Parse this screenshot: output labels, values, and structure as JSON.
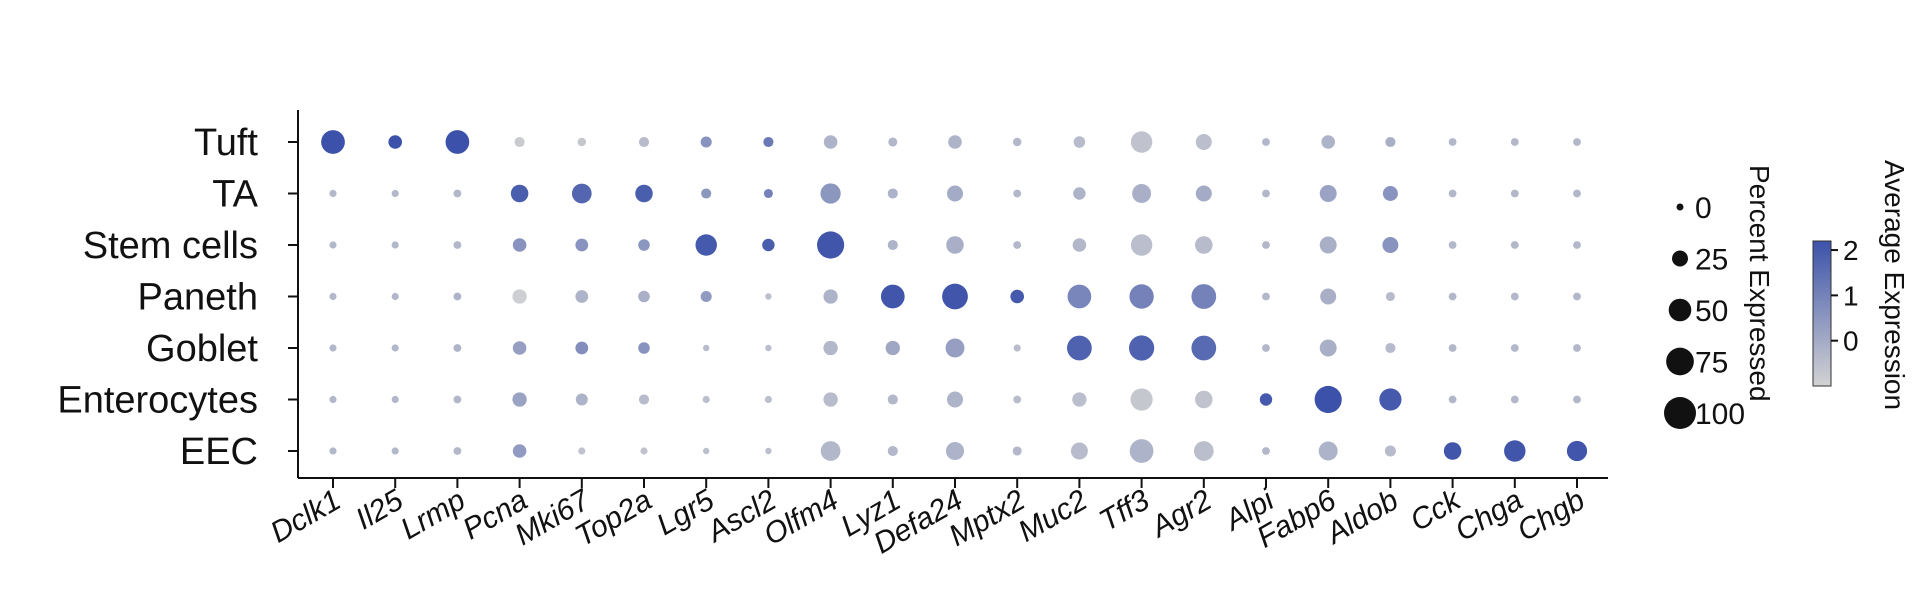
{
  "chart_data": {
    "type": "dotplot",
    "genes": [
      "Dclk1",
      "Il25",
      "Lrmp",
      "Pcna",
      "Mki67",
      "Top2a",
      "Lgr5",
      "Ascl2",
      "Olfm4",
      "Lyz1",
      "Defa24",
      "Mptx2",
      "Muc2",
      "Tff3",
      "Agr2",
      "Alpi",
      "Fabp6",
      "Aldob",
      "Cck",
      "Chga",
      "Chgb"
    ],
    "cell_types": [
      "Tuft",
      "TA",
      "Stem cells",
      "Paneth",
      "Goblet",
      "Enterocytes",
      "EEC"
    ],
    "percent_expressed": [
      [
        55,
        18,
        55,
        10,
        7,
        10,
        12,
        10,
        18,
        8,
        18,
        7,
        13,
        45,
        25,
        6,
        18,
        10,
        6,
        6,
        6
      ],
      [
        5,
        5,
        6,
        30,
        38,
        30,
        10,
        8,
        40,
        10,
        25,
        6,
        15,
        35,
        25,
        6,
        28,
        22,
        6,
        6,
        6
      ],
      [
        5,
        5,
        6,
        18,
        16,
        13,
        45,
        15,
        72,
        10,
        30,
        6,
        18,
        45,
        30,
        6,
        28,
        25,
        6,
        6,
        6
      ],
      [
        5,
        5,
        6,
        20,
        16,
        13,
        12,
        4,
        20,
        55,
        65,
        18,
        55,
        58,
        60,
        6,
        25,
        8,
        6,
        6,
        6
      ],
      [
        5,
        5,
        6,
        18,
        16,
        13,
        4,
        4,
        20,
        20,
        35,
        5,
        60,
        62,
        60,
        6,
        28,
        10,
        6,
        6,
        6
      ],
      [
        5,
        5,
        6,
        20,
        14,
        10,
        5,
        5,
        20,
        10,
        25,
        6,
        20,
        48,
        30,
        15,
        72,
        48,
        6,
        6,
        6
      ],
      [
        5,
        5,
        6,
        18,
        5,
        5,
        4,
        4,
        38,
        10,
        32,
        8,
        28,
        55,
        38,
        6,
        35,
        12,
        30,
        45,
        40
      ]
    ],
    "average_expression": [
      [
        2.2,
        2.2,
        2.2,
        -0.8,
        -0.7,
        -0.4,
        0.6,
        1.2,
        -0.2,
        -0.3,
        -0.2,
        -0.3,
        -0.4,
        -0.6,
        -0.5,
        -0.3,
        -0.2,
        -0.1,
        -0.3,
        -0.3,
        -0.3
      ],
      [
        -0.3,
        -0.3,
        -0.3,
        1.9,
        1.7,
        1.9,
        0.5,
        1.0,
        0.5,
        -0.2,
        0.0,
        -0.3,
        -0.2,
        -0.1,
        0.0,
        -0.3,
        0.2,
        0.6,
        -0.3,
        -0.3,
        -0.3
      ],
      [
        -0.3,
        -0.3,
        -0.3,
        0.6,
        0.6,
        0.5,
        2.0,
        1.9,
        2.1,
        -0.2,
        -0.1,
        -0.3,
        -0.3,
        -0.5,
        -0.4,
        -0.3,
        -0.1,
        0.6,
        -0.3,
        -0.3,
        -0.3
      ],
      [
        -0.3,
        -0.3,
        -0.2,
        -0.9,
        -0.2,
        -0.1,
        0.4,
        -0.5,
        -0.2,
        2.1,
        2.1,
        2.0,
        0.9,
        1.0,
        1.0,
        -0.3,
        -0.1,
        -0.4,
        -0.3,
        -0.3,
        -0.3
      ],
      [
        -0.3,
        -0.3,
        -0.2,
        0.3,
        0.7,
        0.6,
        -0.4,
        -0.5,
        -0.3,
        0.1,
        0.3,
        -0.4,
        1.8,
        1.8,
        1.6,
        -0.3,
        -0.1,
        -0.4,
        -0.3,
        -0.3,
        -0.3
      ],
      [
        -0.3,
        -0.3,
        -0.3,
        0.2,
        -0.2,
        -0.4,
        -0.5,
        -0.5,
        -0.4,
        -0.3,
        -0.2,
        -0.4,
        -0.5,
        -0.7,
        -0.6,
        2.0,
        2.2,
        2.0,
        -0.3,
        -0.3,
        -0.3
      ],
      [
        -0.3,
        -0.3,
        -0.3,
        0.4,
        -0.6,
        -0.6,
        -0.5,
        -0.5,
        -0.3,
        -0.3,
        -0.2,
        -0.3,
        -0.4,
        -0.2,
        -0.5,
        -0.3,
        -0.2,
        -0.4,
        2.1,
        2.1,
        2.1
      ]
    ],
    "size_legend": {
      "title": "Percent Expressed",
      "values": [
        0,
        25,
        50,
        75,
        100
      ],
      "labels": [
        "0",
        "25",
        "50",
        "75",
        "100"
      ]
    },
    "color_legend": {
      "title": "Average Expression",
      "ticks": [
        2,
        1,
        0
      ],
      "labels": [
        "2",
        "1",
        "0"
      ],
      "range": [
        -1,
        2.2
      ],
      "colors": [
        "#d3d3d3",
        "#3c52aa"
      ]
    }
  }
}
